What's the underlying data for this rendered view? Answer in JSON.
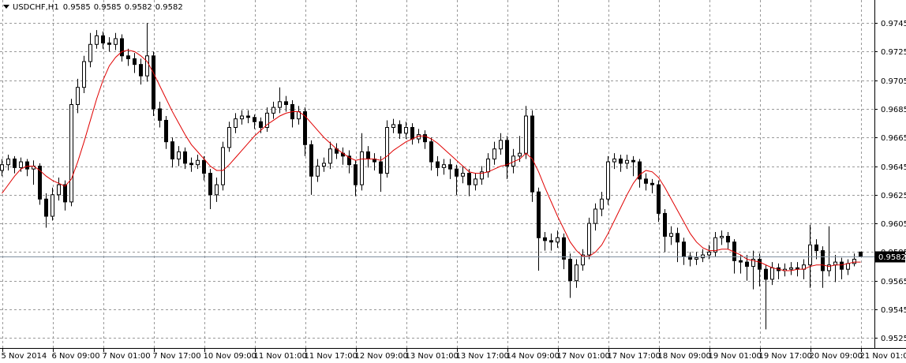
{
  "chart_data": {
    "type": "candlestick",
    "symbol": "USDCHF,H1",
    "categories": [
      "5 Nov 2014",
      null,
      null,
      null,
      null,
      null,
      null,
      null,
      "6 Nov 09:00",
      null,
      null,
      null,
      null,
      null,
      null,
      null,
      "7 Nov 01:00",
      null,
      null,
      null,
      null,
      null,
      null,
      null,
      "7 Nov 17:00",
      null,
      null,
      null,
      null,
      null,
      null,
      null,
      "10 Nov 09:00",
      null,
      null,
      null,
      null,
      null,
      null,
      null,
      "11 Nov 01:00",
      null,
      null,
      null,
      null,
      null,
      null,
      null,
      "11 Nov 17:00",
      null,
      null,
      null,
      null,
      null,
      null,
      null,
      "12 Nov 09:00",
      null,
      null,
      null,
      null,
      null,
      null,
      null,
      "13 Nov 01:00",
      null,
      null,
      null,
      null,
      null,
      null,
      null,
      "13 Nov 17:00",
      null,
      null,
      null,
      null,
      null,
      null,
      null,
      "14 Nov 09:00",
      null,
      null,
      null,
      null,
      null,
      null,
      null,
      "17 Nov 01:00",
      null,
      null,
      null,
      null,
      null,
      null,
      null,
      "17 Nov 17:00",
      null,
      null,
      null,
      null,
      null,
      null,
      null,
      "18 Nov 09:00",
      null,
      null,
      null,
      null,
      null,
      null,
      null,
      "19 Nov 01:00",
      null,
      null,
      null,
      null,
      null,
      null,
      null,
      "19 Nov 17:00",
      null,
      null,
      null,
      null,
      null,
      null,
      null,
      "20 Nov 09:00",
      null,
      null,
      null,
      null,
      null,
      null,
      null,
      "21 Nov 01:00"
    ],
    "open": [
      0.9642,
      0.9646,
      0.965,
      0.9644,
      0.9648,
      0.9643,
      0.9645,
      0.9622,
      0.961,
      0.9625,
      0.9632,
      0.962,
      0.9688,
      0.97,
      0.9718,
      0.973,
      0.9736,
      0.9731,
      0.973,
      0.9734,
      0.9722,
      0.972,
      0.9716,
      0.9708,
      0.9722,
      0.9685,
      0.9677,
      0.9662,
      0.965,
      0.9655,
      0.9647,
      0.9646,
      0.9649,
      0.964,
      0.9625,
      0.9632,
      0.9658,
      0.9672,
      0.9678,
      0.968,
      0.9679,
      0.9676,
      0.9672,
      0.9682,
      0.9686,
      0.969,
      0.9688,
      0.9678,
      0.9683,
      0.966,
      0.9638,
      0.9645,
      0.9647,
      0.9657,
      0.9654,
      0.9652,
      0.9646,
      0.9632,
      0.9655,
      0.965,
      0.9648,
      0.964,
      0.9672,
      0.9674,
      0.9668,
      0.9672,
      0.9664,
      0.9667,
      0.9662,
      0.9648,
      0.9644,
      0.9646,
      0.9643,
      0.9638,
      0.964,
      0.9632,
      0.9636,
      0.9641,
      0.965,
      0.9657,
      0.9663,
      0.9645,
      0.9652,
      0.9654,
      0.968,
      0.9627,
      0.9595,
      0.9593,
      0.9592,
      0.9595,
      0.958,
      0.9565,
      0.9576,
      0.9583,
      0.9605,
      0.9615,
      0.9622,
      0.9648,
      0.965,
      0.9647,
      0.9649,
      0.9648,
      0.9636,
      0.9633,
      0.9632,
      0.9612,
      0.9596,
      0.9598,
      0.9592,
      0.9582,
      0.958,
      0.9581,
      0.9583,
      0.9585,
      0.9595,
      0.9596,
      0.9592,
      0.9579,
      0.9578,
      0.9575,
      0.958,
      0.9573,
      0.9566,
      0.9574,
      0.9572,
      0.9573,
      0.9574,
      0.9573,
      0.9576,
      0.959,
      0.9586,
      0.9572,
      0.9576,
      0.9578,
      0.9573,
      0.9577,
      0.9585
    ],
    "high": [
      0.965,
      0.9653,
      0.9652,
      0.9651,
      0.965,
      0.9649,
      0.9647,
      0.9626,
      0.963,
      0.9637,
      0.9635,
      0.9692,
      0.9706,
      0.9722,
      0.9738,
      0.974,
      0.9739,
      0.9735,
      0.9738,
      0.9737,
      0.9727,
      0.9724,
      0.972,
      0.9745,
      0.9725,
      0.969,
      0.968,
      0.9665,
      0.9659,
      0.9658,
      0.9651,
      0.9653,
      0.9652,
      0.9643,
      0.9637,
      0.9662,
      0.9676,
      0.9682,
      0.9684,
      0.9684,
      0.9681,
      0.9679,
      0.9686,
      0.969,
      0.97,
      0.9694,
      0.9691,
      0.9687,
      0.9686,
      0.9663,
      0.965,
      0.9651,
      0.9662,
      0.9661,
      0.9658,
      0.9656,
      0.9649,
      0.9668,
      0.9659,
      0.9654,
      0.9652,
      0.9677,
      0.9678,
      0.9677,
      0.9676,
      0.9675,
      0.9671,
      0.967,
      0.9665,
      0.9652,
      0.965,
      0.965,
      0.9646,
      0.9645,
      0.9643,
      0.964,
      0.9645,
      0.9654,
      0.9662,
      0.9668,
      0.9666,
      0.9657,
      0.9666,
      0.9687,
      0.9684,
      0.963,
      0.9599,
      0.9598,
      0.96,
      0.9598,
      0.9584,
      0.958,
      0.9587,
      0.9609,
      0.9619,
      0.9627,
      0.9652,
      0.9654,
      0.9653,
      0.9653,
      0.9652,
      0.965,
      0.964,
      0.9636,
      0.9635,
      0.9615,
      0.9603,
      0.9602,
      0.9595,
      0.9585,
      0.9585,
      0.9587,
      0.959,
      0.9599,
      0.96,
      0.9599,
      0.9594,
      0.9583,
      0.9583,
      0.9586,
      0.9584,
      0.9576,
      0.9578,
      0.9577,
      0.9577,
      0.9578,
      0.9578,
      0.958,
      0.9604,
      0.9594,
      0.9589,
      0.9603,
      0.9583,
      0.9581,
      0.958,
      0.9584,
      0.9585
    ],
    "low": [
      0.9638,
      0.9642,
      0.964,
      0.9641,
      0.9638,
      0.9632,
      0.9618,
      0.9602,
      0.9607,
      0.9621,
      0.9614,
      0.9617,
      0.9682,
      0.9696,
      0.9714,
      0.9727,
      0.9727,
      0.9725,
      0.9726,
      0.9718,
      0.9715,
      0.971,
      0.9702,
      0.9704,
      0.968,
      0.9672,
      0.9657,
      0.9644,
      0.9645,
      0.9643,
      0.9641,
      0.9643,
      0.9635,
      0.9615,
      0.962,
      0.9628,
      0.9655,
      0.9668,
      0.9674,
      0.9675,
      0.9671,
      0.9668,
      0.9669,
      0.9678,
      0.9682,
      0.9683,
      0.9672,
      0.9674,
      0.9652,
      0.9625,
      0.9634,
      0.9641,
      0.9643,
      0.965,
      0.9646,
      0.964,
      0.9624,
      0.9628,
      0.9644,
      0.9642,
      0.9627,
      0.9637,
      0.9668,
      0.9664,
      0.9664,
      0.966,
      0.9661,
      0.9657,
      0.9642,
      0.9638,
      0.9639,
      0.9636,
      0.9625,
      0.9633,
      0.9624,
      0.9628,
      0.9632,
      0.9637,
      0.9646,
      0.9653,
      0.9636,
      0.964,
      0.9648,
      0.965,
      0.962,
      0.9572,
      0.9586,
      0.9586,
      0.9588,
      0.9573,
      0.9553,
      0.956,
      0.9572,
      0.958,
      0.96,
      0.961,
      0.9618,
      0.9643,
      0.9641,
      0.9643,
      0.9638,
      0.963,
      0.9628,
      0.9626,
      0.9606,
      0.9585,
      0.959,
      0.9578,
      0.9576,
      0.9575,
      0.9576,
      0.9578,
      0.958,
      0.9582,
      0.959,
      0.9587,
      0.957,
      0.957,
      0.9565,
      0.9559,
      0.9561,
      0.9531,
      0.9562,
      0.9566,
      0.9568,
      0.9569,
      0.9568,
      0.9566,
      0.956,
      0.958,
      0.956,
      0.9568,
      0.9564,
      0.9566,
      0.9569,
      0.9575,
      0.9582
    ],
    "close": [
      0.9646,
      0.965,
      0.9644,
      0.9648,
      0.9643,
      0.9645,
      0.9622,
      0.961,
      0.9625,
      0.9632,
      0.962,
      0.9688,
      0.97,
      0.9718,
      0.973,
      0.9736,
      0.9731,
      0.973,
      0.9734,
      0.9722,
      0.972,
      0.9716,
      0.9708,
      0.9722,
      0.9685,
      0.9677,
      0.9662,
      0.965,
      0.9655,
      0.9647,
      0.9646,
      0.9649,
      0.964,
      0.9625,
      0.9632,
      0.9658,
      0.9672,
      0.9678,
      0.968,
      0.9679,
      0.9676,
      0.9672,
      0.9682,
      0.9686,
      0.969,
      0.9688,
      0.9678,
      0.9683,
      0.966,
      0.9638,
      0.9645,
      0.9647,
      0.9657,
      0.9654,
      0.9652,
      0.9646,
      0.9632,
      0.9655,
      0.965,
      0.9648,
      0.964,
      0.9672,
      0.9674,
      0.9668,
      0.9672,
      0.9664,
      0.9667,
      0.9662,
      0.9648,
      0.9644,
      0.9646,
      0.9643,
      0.9638,
      0.964,
      0.9632,
      0.9636,
      0.9641,
      0.965,
      0.9657,
      0.9663,
      0.9645,
      0.9652,
      0.9654,
      0.968,
      0.9627,
      0.9595,
      0.9593,
      0.9592,
      0.9595,
      0.958,
      0.9565,
      0.9576,
      0.9583,
      0.9605,
      0.9615,
      0.9622,
      0.9648,
      0.965,
      0.9647,
      0.9649,
      0.9648,
      0.9636,
      0.9633,
      0.9632,
      0.9612,
      0.9596,
      0.9598,
      0.9592,
      0.9582,
      0.958,
      0.9581,
      0.9583,
      0.9585,
      0.9595,
      0.9596,
      0.9592,
      0.9579,
      0.9578,
      0.9575,
      0.958,
      0.9573,
      0.9566,
      0.9574,
      0.9572,
      0.9573,
      0.9574,
      0.9573,
      0.9576,
      0.959,
      0.9586,
      0.9572,
      0.9576,
      0.9578,
      0.9573,
      0.9577,
      0.958,
      0.9582
    ],
    "ma": {
      "color": "#e00000",
      "values": [
        0.9626,
        0.9632,
        0.9638,
        0.9643,
        0.9645,
        0.9645,
        0.9642,
        0.9638,
        0.9635,
        0.9633,
        0.9631,
        0.9636,
        0.9648,
        0.9662,
        0.9677,
        0.9692,
        0.9705,
        0.9715,
        0.9721,
        0.9725,
        0.9726,
        0.9725,
        0.9722,
        0.9718,
        0.971,
        0.9701,
        0.9692,
        0.9683,
        0.9675,
        0.9667,
        0.966,
        0.9655,
        0.965,
        0.9645,
        0.9642,
        0.9642,
        0.9646,
        0.9651,
        0.9656,
        0.9661,
        0.9666,
        0.967,
        0.9674,
        0.9677,
        0.968,
        0.9682,
        0.9683,
        0.9683,
        0.968,
        0.9675,
        0.967,
        0.9665,
        0.9661,
        0.9657,
        0.9654,
        0.9651,
        0.9649,
        0.965,
        0.965,
        0.965,
        0.9649,
        0.9652,
        0.9656,
        0.9659,
        0.9662,
        0.9664,
        0.9666,
        0.9666,
        0.9664,
        0.9661,
        0.9657,
        0.9653,
        0.9649,
        0.9645,
        0.9641,
        0.964,
        0.964,
        0.9641,
        0.9643,
        0.9645,
        0.9646,
        0.9648,
        0.965,
        0.9654,
        0.965,
        0.9641,
        0.963,
        0.962,
        0.961,
        0.9601,
        0.9592,
        0.9586,
        0.9582,
        0.9582,
        0.9585,
        0.959,
        0.9598,
        0.9607,
        0.9616,
        0.9625,
        0.9633,
        0.9639,
        0.9642,
        0.9641,
        0.9637,
        0.963,
        0.9622,
        0.9614,
        0.9606,
        0.9598,
        0.9592,
        0.9588,
        0.9586,
        0.9586,
        0.9587,
        0.9587,
        0.9585,
        0.9583,
        0.958,
        0.9579,
        0.9578,
        0.9576,
        0.9574,
        0.9573,
        0.9572,
        0.9572,
        0.9573,
        0.9573,
        0.9575,
        0.9576,
        0.9576,
        0.9575,
        0.9576,
        0.9576,
        0.9577,
        0.9578,
        0.9578
      ]
    },
    "up_color": "#ffffff",
    "down_color": "#000000",
    "doji_color": "#00c000",
    "outline_color": "#000000",
    "ylim": [
      0.9518,
      0.9761
    ],
    "yticks": [
      0.9745,
      0.9725,
      0.9705,
      0.9685,
      0.9665,
      0.9645,
      0.9625,
      0.9605,
      0.9585,
      0.9565,
      0.9545,
      0.9525
    ],
    "grid": true
  }
}
